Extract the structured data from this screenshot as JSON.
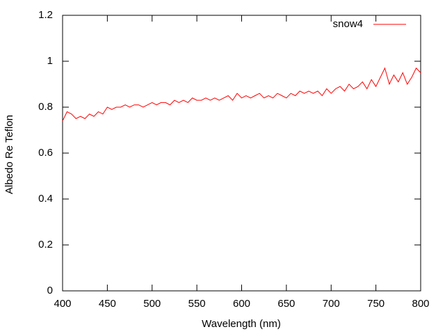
{
  "chart_data": {
    "type": "line",
    "xlabel": "Wavelength (nm)",
    "ylabel": "Albedo Re Teflon",
    "x": [
      400,
      405,
      410,
      415,
      420,
      425,
      430,
      435,
      440,
      445,
      450,
      455,
      460,
      465,
      470,
      475,
      480,
      485,
      490,
      495,
      500,
      505,
      510,
      515,
      520,
      525,
      530,
      535,
      540,
      545,
      550,
      555,
      560,
      565,
      570,
      575,
      580,
      585,
      590,
      595,
      600,
      605,
      610,
      615,
      620,
      625,
      630,
      635,
      640,
      645,
      650,
      655,
      660,
      665,
      670,
      675,
      680,
      685,
      690,
      695,
      700,
      705,
      710,
      715,
      720,
      725,
      730,
      735,
      740,
      745,
      750,
      755,
      760,
      765,
      770,
      775,
      780,
      785,
      790,
      795,
      800
    ],
    "series": [
      {
        "name": "snow4",
        "color": "#ff0000",
        "values": [
          0.74,
          0.78,
          0.77,
          0.75,
          0.76,
          0.75,
          0.77,
          0.76,
          0.78,
          0.77,
          0.8,
          0.79,
          0.8,
          0.8,
          0.81,
          0.8,
          0.81,
          0.81,
          0.8,
          0.81,
          0.82,
          0.81,
          0.82,
          0.82,
          0.81,
          0.83,
          0.82,
          0.83,
          0.82,
          0.84,
          0.83,
          0.83,
          0.84,
          0.83,
          0.84,
          0.83,
          0.84,
          0.85,
          0.83,
          0.86,
          0.84,
          0.85,
          0.84,
          0.85,
          0.86,
          0.84,
          0.85,
          0.84,
          0.86,
          0.85,
          0.84,
          0.86,
          0.85,
          0.87,
          0.86,
          0.87,
          0.86,
          0.87,
          0.85,
          0.88,
          0.86,
          0.88,
          0.89,
          0.87,
          0.9,
          0.88,
          0.89,
          0.91,
          0.88,
          0.92,
          0.89,
          0.93,
          0.97,
          0.9,
          0.94,
          0.91,
          0.95,
          0.9,
          0.93,
          0.97,
          0.95
        ]
      }
    ],
    "xlim": [
      400,
      800
    ],
    "xticks": [
      400,
      450,
      500,
      550,
      600,
      650,
      700,
      750,
      800
    ],
    "ylim": [
      0,
      1.2
    ],
    "yticks": [
      0,
      0.2,
      0.4,
      0.6,
      0.8,
      1,
      1.2
    ],
    "legend": "upper right"
  }
}
